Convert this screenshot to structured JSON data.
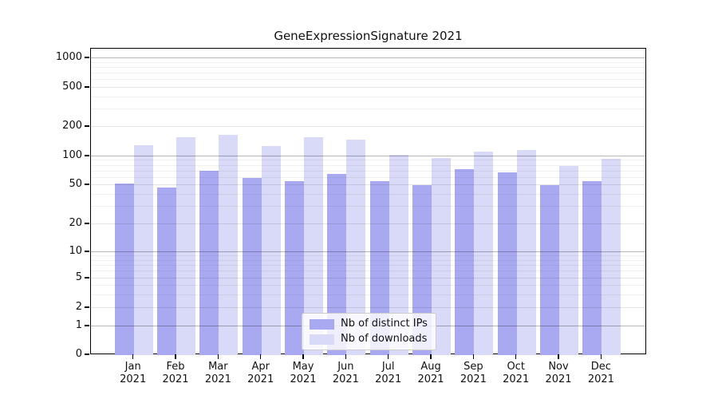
{
  "title": "GeneExpressionSignature 2021",
  "colors": {
    "ips": "#a9a9f1",
    "downloads": "#d9d9f8",
    "grid_major": "#b5b5b5",
    "grid_minor": "#e9e9e9",
    "axis": "#000000"
  },
  "legend": {
    "items": [
      {
        "label": "Nb of distinct IPs",
        "series": "ips"
      },
      {
        "label": "Nb of downloads",
        "series": "downloads"
      }
    ],
    "position": "lower center inside plot"
  },
  "axes": {
    "y_ticks": [
      1000,
      500,
      200,
      100,
      50,
      20,
      10,
      5,
      2,
      1,
      0
    ],
    "y_scale": "symlog",
    "x_tick_line2": "2021"
  },
  "chart_data": {
    "type": "bar",
    "title": "GeneExpressionSignature 2021",
    "categories": [
      "Jan 2021",
      "Feb 2021",
      "Mar 2021",
      "Apr 2021",
      "May 2021",
      "Jun 2021",
      "Jul 2021",
      "Aug 2021",
      "Sep 2021",
      "Oct 2021",
      "Nov 2021",
      "Dec 2021"
    ],
    "months": [
      "Jan",
      "Feb",
      "Mar",
      "Apr",
      "May",
      "Jun",
      "Jul",
      "Aug",
      "Sep",
      "Oct",
      "Nov",
      "Dec"
    ],
    "year": "2021",
    "series": [
      {
        "name": "Nb of distinct IPs",
        "color": "#a9a9f1",
        "values": [
          52,
          47,
          71,
          60,
          55,
          65,
          55,
          50,
          73,
          68,
          50,
          55
        ]
      },
      {
        "name": "Nb of downloads",
        "color": "#d9d9f8",
        "values": [
          130,
          157,
          165,
          127,
          158,
          147,
          103,
          97,
          112,
          117,
          80,
          95
        ]
      }
    ],
    "yscale": "symlog",
    "yticks": [
      0,
      1,
      2,
      5,
      10,
      20,
      50,
      100,
      200,
      500,
      1000
    ],
    "ylim": [
      0,
      1300
    ],
    "grid": "horizontal, log major + minor",
    "legend_position": "lower center"
  }
}
